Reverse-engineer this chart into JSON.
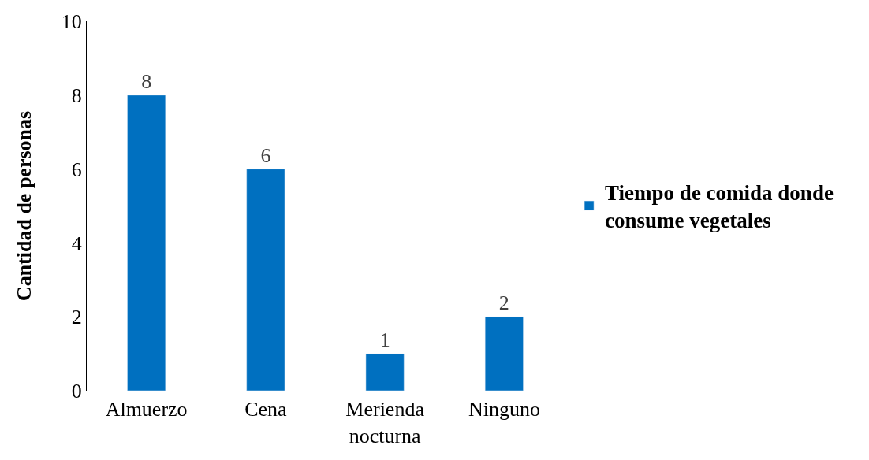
{
  "chart_data": {
    "type": "bar",
    "ylabel": "Cantidad de personas",
    "categories": [
      "Almuerzo",
      "Cena",
      "Merienda nocturna",
      "Ninguno"
    ],
    "series": [
      {
        "name": "Tiempo de comida donde consume vegetales",
        "color": "#0070c0",
        "values": [
          8,
          6,
          1,
          2
        ]
      }
    ],
    "ylim": [
      0,
      10
    ],
    "yticks": [
      0,
      2,
      4,
      6,
      8,
      10
    ],
    "data_labels": true,
    "legend": "right"
  }
}
